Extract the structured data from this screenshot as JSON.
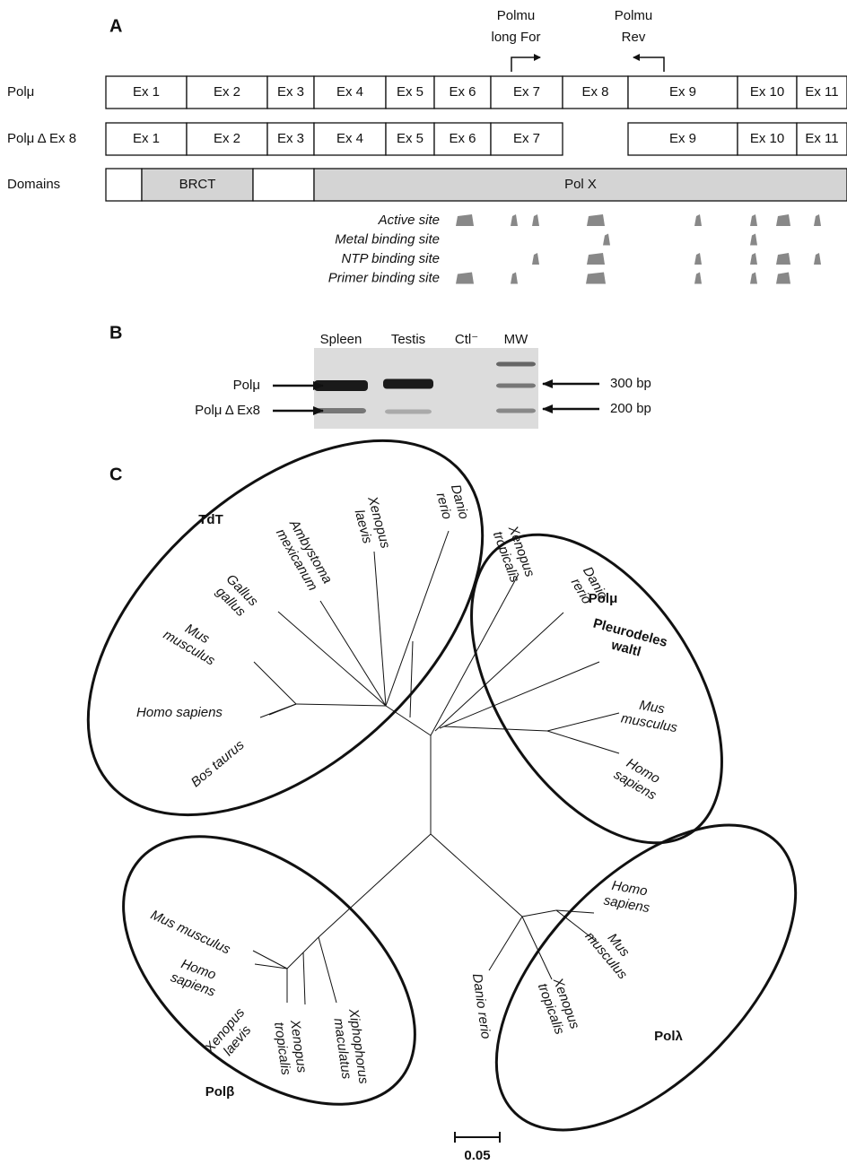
{
  "panels": {
    "a": "A",
    "b": "B",
    "c": "C"
  },
  "panel_a": {
    "primers": [
      {
        "lines": [
          "Polmu",
          "long For"
        ]
      },
      {
        "lines": [
          "Polmu",
          "Rev"
        ]
      }
    ],
    "rows": [
      {
        "label": "Polμ",
        "exons": [
          "Ex 1",
          "Ex 2",
          "Ex 3",
          "Ex 4",
          "Ex 5",
          "Ex 6",
          "Ex 7",
          "Ex 8",
          "Ex 9",
          "Ex 10",
          "Ex 11"
        ]
      },
      {
        "label": "Polμ Δ Ex 8",
        "exons": [
          "Ex 1",
          "Ex 2",
          "Ex 3",
          "Ex 4",
          "Ex 5",
          "Ex 6",
          "Ex 7",
          "Ex 9",
          "Ex 10",
          "Ex 11"
        ]
      }
    ],
    "domains": {
      "label": "Domains",
      "items": [
        "BRCT",
        "Pol X"
      ]
    },
    "sites": [
      "Active site",
      "Metal binding site",
      "NTP binding site",
      "Primer binding site"
    ]
  },
  "panel_b": {
    "lanes": [
      "Spleen",
      "Testis",
      "Ctl⁻",
      "MW"
    ],
    "bands": [
      "Polμ",
      "Polμ Δ Ex8"
    ],
    "sizes": [
      "300 bp",
      "200 bp"
    ]
  },
  "panel_c": {
    "groups": [
      {
        "name": "TdT",
        "species": [
          [
            "Danio",
            "rerio"
          ],
          [
            "Xenopus",
            "laevis"
          ],
          [
            "Ambystoma",
            "mexicanum"
          ],
          [
            "Gallus",
            "gallus"
          ],
          [
            "Mus",
            "musculus"
          ],
          [
            "Homo sapiens"
          ],
          [
            "Bos taurus"
          ]
        ]
      },
      {
        "name": "Polμ",
        "species": [
          [
            "Xenopus",
            "tropicalis"
          ],
          [
            "Danio",
            "rerio"
          ],
          [
            "Pleurodeles",
            "waltl"
          ],
          [
            "Mus",
            "musculus"
          ],
          [
            "Homo",
            "sapiens"
          ]
        ]
      },
      {
        "name": "Polβ",
        "species": [
          [
            "Mus musculus"
          ],
          [
            "Homo",
            "sapiens"
          ],
          [
            "Xenopus",
            "laevis"
          ],
          [
            "Xenopus",
            "tropicalis"
          ],
          [
            "Xiphophorus",
            "maculatus"
          ]
        ]
      },
      {
        "name": "Polλ",
        "species": [
          [
            "Homo",
            "sapiens"
          ],
          [
            "Mus",
            "musculus"
          ],
          [
            "Xenopus",
            "tropicalis"
          ],
          [
            "Danio rerio"
          ]
        ]
      }
    ],
    "scale": "0.05"
  }
}
